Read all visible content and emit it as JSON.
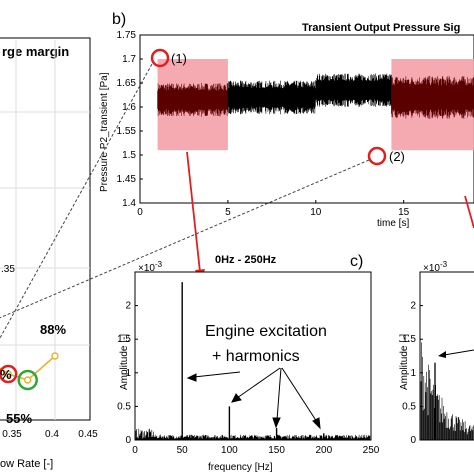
{
  "panels": {
    "a": {
      "title": "rge margin",
      "xlabel": "ow Rate [-]",
      "xticks": [
        "0.35",
        "0.4",
        "0.45"
      ],
      "yticks": [
        ".35"
      ],
      "annotations": [
        "88%",
        "%",
        "55%"
      ],
      "colors": {
        "line": "#e8b030",
        "red": "#e02020",
        "green": "#30a830"
      }
    },
    "b": {
      "label": "b)",
      "title": "Transient Output Pressure Sig",
      "ylabel": "Pressure P2_transient [Pa]",
      "xlabel": "time [s]",
      "yticks": [
        "1.75",
        "1.7",
        "1.65",
        "1.6",
        "1.55",
        "1.5",
        "1.45",
        "1.4"
      ],
      "xticks": [
        "0",
        "5",
        "10",
        "15"
      ],
      "markers": [
        "(1)",
        "(2)"
      ],
      "highlight_color": "#f4a0a8"
    },
    "c": {
      "label": "c)",
      "title": "0Hz - 250Hz",
      "ylabel": "Amplitude [-]",
      "xlabel": "frequency [Hz]",
      "exponent": "×10",
      "exponent_power": "-3",
      "yticks": [
        "2",
        "1.5",
        "1",
        "0.5",
        "0"
      ],
      "xticks": [
        "0",
        "50",
        "100",
        "150",
        "200",
        "250"
      ],
      "annotation_line1": "Engine excitation",
      "annotation_line2": "+ harmonics"
    },
    "d": {
      "ylabel": "Amplitude [-]",
      "exponent": "×10",
      "exponent_power": "-3",
      "yticks": [
        "2",
        "1.5",
        "1",
        "0.5",
        "0"
      ]
    }
  },
  "chart_data": [
    {
      "type": "line",
      "panel": "a",
      "title": "rge margin",
      "xlabel": "ow Rate [-]",
      "x": [
        0.31,
        0.34,
        0.365,
        0.4
      ],
      "y": [
        0.62,
        0.46,
        0.4,
        0.64
      ],
      "xlim": [
        0.3,
        0.45
      ],
      "annotations": [
        "88%",
        "%",
        "55%"
      ]
    },
    {
      "type": "line",
      "panel": "b",
      "title": "Transient Output Pressure Sig",
      "xlabel": "time [s]",
      "ylabel": "Pressure P2_transient [Pa]",
      "xlim": [
        0,
        19
      ],
      "ylim": [
        1.4,
        1.75
      ],
      "segments": [
        {
          "t0": 1.0,
          "t1": 5.0,
          "mean": 1.615,
          "amp": 0.035
        },
        {
          "t0": 5.0,
          "t1": 10.0,
          "mean": 1.62,
          "amp": 0.035
        },
        {
          "t0": 10.0,
          "t1": 14.3,
          "mean": 1.635,
          "amp": 0.035
        },
        {
          "t0": 14.3,
          "t1": 19.0,
          "mean": 1.62,
          "amp": 0.045
        }
      ],
      "highlight_ranges": [
        [
          1.0,
          5.0
        ],
        [
          14.3,
          19.0
        ]
      ]
    },
    {
      "type": "bar",
      "panel": "c",
      "title": "0Hz - 250Hz",
      "xlabel": "frequency [Hz]",
      "ylabel": "Amplitude [-]",
      "xlim": [
        0,
        250
      ],
      "ylim": [
        0,
        0.0025
      ],
      "x": [
        50,
        100,
        150,
        200
      ],
      "values": [
        0.00235,
        0.0005,
        0.00018,
        0.0001
      ]
    },
    {
      "type": "line",
      "panel": "d",
      "ylabel": "Amplitude [-]",
      "ylim": [
        0,
        0.0025
      ]
    }
  ]
}
